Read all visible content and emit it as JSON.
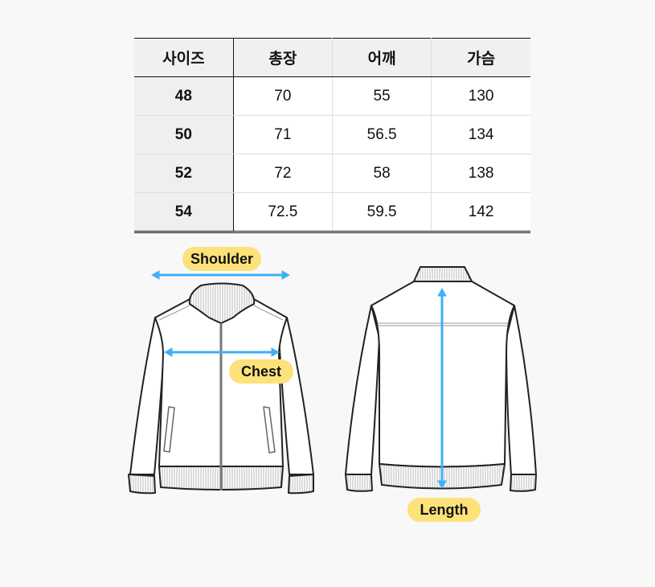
{
  "size_table": {
    "headers": [
      "사이즈",
      "총장",
      "어깨",
      "가슴"
    ],
    "rows": [
      {
        "size": "48",
        "length": "70",
        "shoulder": "55",
        "chest": "130"
      },
      {
        "size": "50",
        "length": "71",
        "shoulder": "56.5",
        "chest": "134"
      },
      {
        "size": "52",
        "length": "72",
        "shoulder": "58",
        "chest": "138"
      },
      {
        "size": "54",
        "length": "72.5",
        "shoulder": "59.5",
        "chest": "142"
      }
    ]
  },
  "diagram": {
    "shoulder_label": "Shoulder",
    "chest_label": "Chest",
    "length_label": "Length",
    "arrow_color": "#3fb0f5",
    "label_color": "#fde27a"
  }
}
